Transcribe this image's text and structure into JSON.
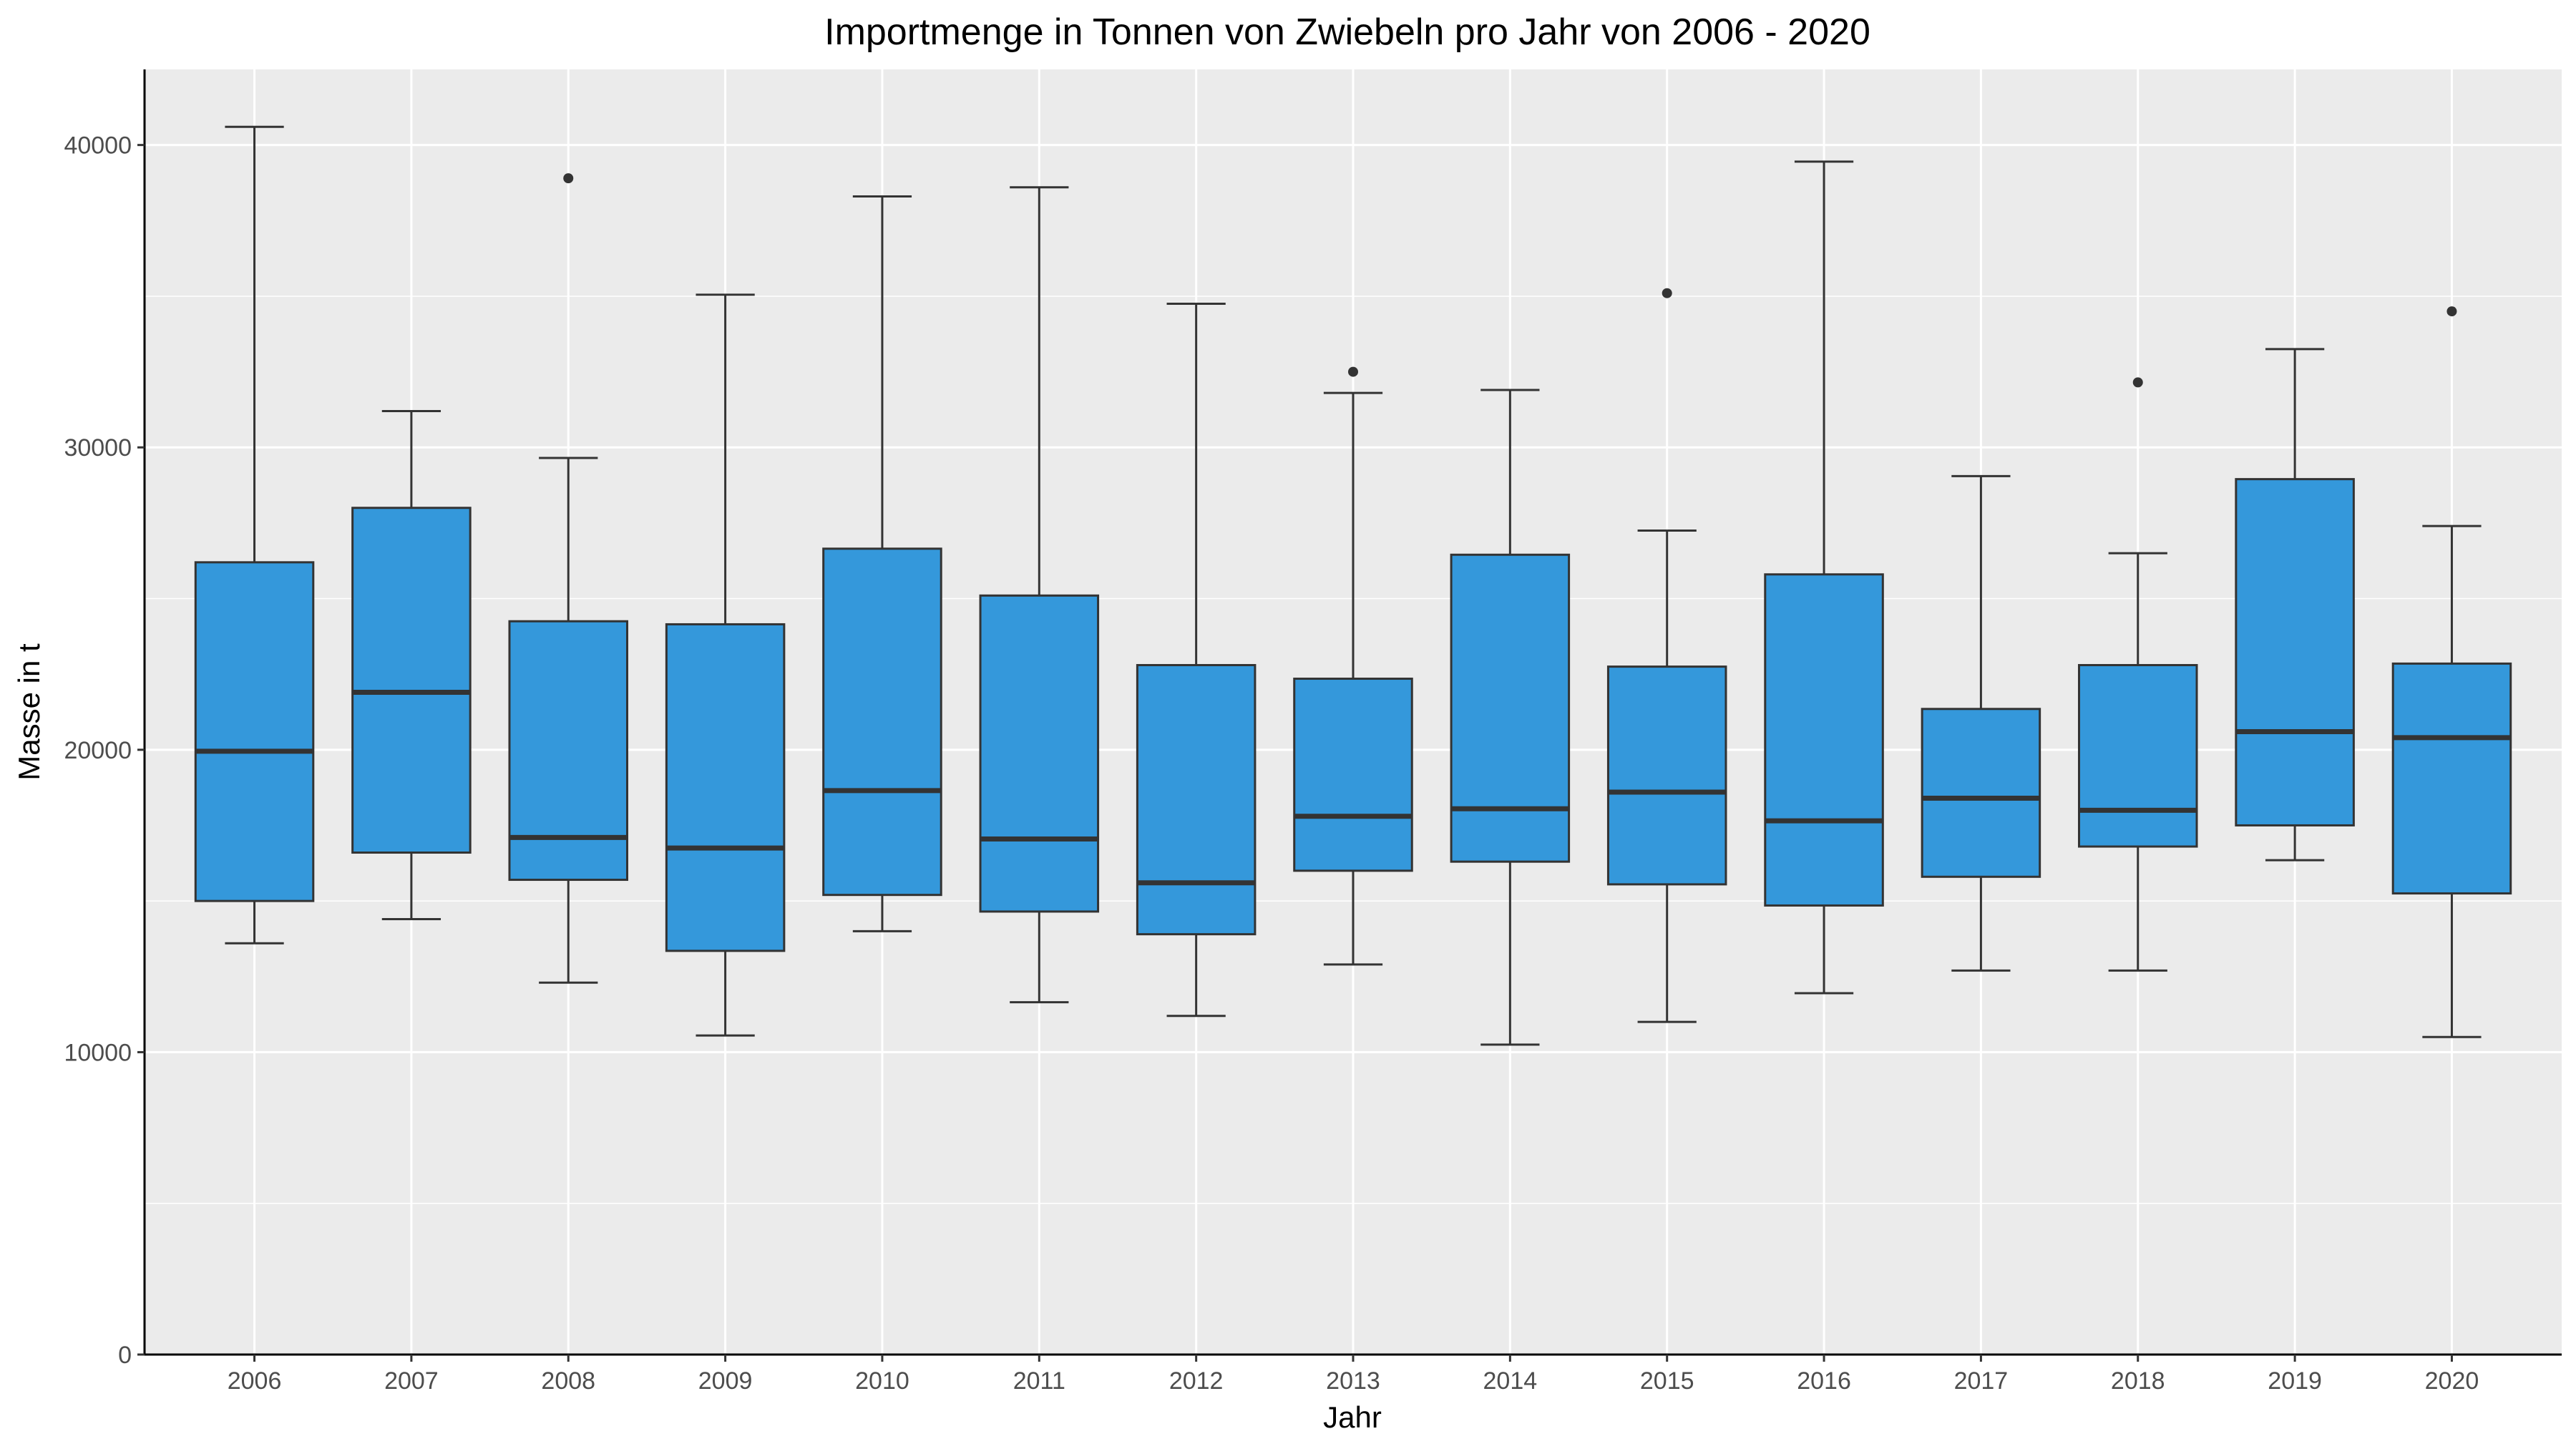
{
  "chart_data": {
    "type": "box",
    "title": "Importmenge in Tonnen von Zwiebeln pro Jahr von 2006 - 2020",
    "xlabel": "Jahr",
    "ylabel": "Masse in t",
    "ylim": [
      0,
      42500
    ],
    "y_ticks": [
      0,
      10000,
      20000,
      30000,
      40000
    ],
    "y_tick_labels": [
      "0",
      "10000",
      "20000",
      "30000",
      "40000"
    ],
    "grid": true,
    "fill_color": "#3498db",
    "panel_background": "#ebebeb",
    "categories": [
      "2006",
      "2007",
      "2008",
      "2009",
      "2010",
      "2011",
      "2012",
      "2013",
      "2014",
      "2015",
      "2016",
      "2017",
      "2018",
      "2019",
      "2020"
    ],
    "boxes": [
      {
        "whisker_low": 13600,
        "q1": 15000,
        "median": 19950,
        "q3": 26200,
        "whisker_high": 40600,
        "outliers": []
      },
      {
        "whisker_low": 14400,
        "q1": 16600,
        "median": 21900,
        "q3": 28000,
        "whisker_high": 31200,
        "outliers": []
      },
      {
        "whisker_low": 12300,
        "q1": 15700,
        "median": 17100,
        "q3": 24250,
        "whisker_high": 29650,
        "outliers": [
          38900
        ]
      },
      {
        "whisker_low": 10550,
        "q1": 13350,
        "median": 16750,
        "q3": 24150,
        "whisker_high": 35050,
        "outliers": []
      },
      {
        "whisker_low": 14000,
        "q1": 15200,
        "median": 18650,
        "q3": 26650,
        "whisker_high": 38300,
        "outliers": []
      },
      {
        "whisker_low": 11650,
        "q1": 14650,
        "median": 17050,
        "q3": 25100,
        "whisker_high": 38600,
        "outliers": []
      },
      {
        "whisker_low": 11200,
        "q1": 13900,
        "median": 15600,
        "q3": 22800,
        "whisker_high": 34750,
        "outliers": []
      },
      {
        "whisker_low": 12900,
        "q1": 16000,
        "median": 17800,
        "q3": 22350,
        "whisker_high": 31800,
        "outliers": [
          32500
        ]
      },
      {
        "whisker_low": 10250,
        "q1": 16300,
        "median": 18050,
        "q3": 26450,
        "whisker_high": 31900,
        "outliers": []
      },
      {
        "whisker_low": 11000,
        "q1": 15550,
        "median": 18600,
        "q3": 22750,
        "whisker_high": 27250,
        "outliers": [
          35100
        ]
      },
      {
        "whisker_low": 11950,
        "q1": 14850,
        "median": 17650,
        "q3": 25800,
        "whisker_high": 39450,
        "outliers": []
      },
      {
        "whisker_low": 12700,
        "q1": 15800,
        "median": 18400,
        "q3": 21350,
        "whisker_high": 29050,
        "outliers": []
      },
      {
        "whisker_low": 12700,
        "q1": 16800,
        "median": 18000,
        "q3": 22800,
        "whisker_high": 26500,
        "outliers": [
          32150
        ]
      },
      {
        "whisker_low": 16350,
        "q1": 17500,
        "median": 20600,
        "q3": 28950,
        "whisker_high": 33250,
        "outliers": []
      },
      {
        "whisker_low": 10500,
        "q1": 15250,
        "median": 20400,
        "q3": 22850,
        "whisker_high": 27400,
        "outliers": [
          34500
        ]
      }
    ]
  }
}
